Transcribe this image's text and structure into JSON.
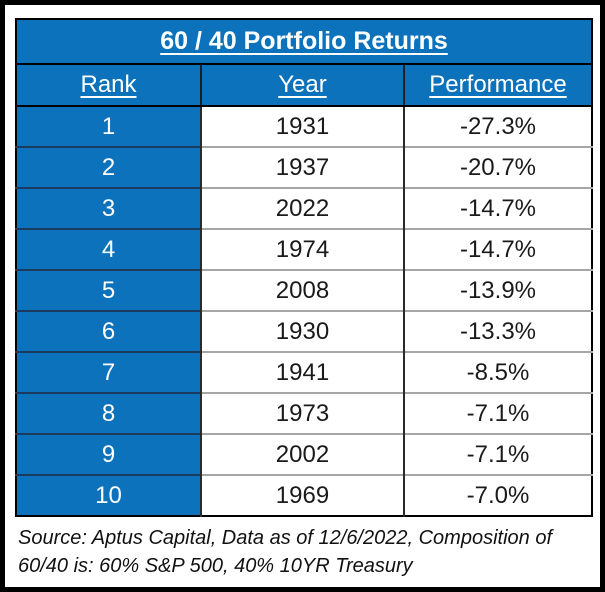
{
  "colors": {
    "header_blue": "#0c72bc",
    "frame_black": "#000000",
    "row_separator_light": "#a6a6a6",
    "row_separator_dark": "#1c3a5e",
    "text_white": "#ffffff",
    "text_dark": "#1a1a1a"
  },
  "table": {
    "title": "60 / 40 Portfolio Returns",
    "columns": [
      "Rank",
      "Year",
      "Performance"
    ],
    "rows": [
      {
        "rank": "1",
        "year": "1931",
        "performance": "-27.3%"
      },
      {
        "rank": "2",
        "year": "1937",
        "performance": "-20.7%"
      },
      {
        "rank": "3",
        "year": "2022",
        "performance": "-14.7%"
      },
      {
        "rank": "4",
        "year": "1974",
        "performance": "-14.7%"
      },
      {
        "rank": "5",
        "year": "2008",
        "performance": "-13.9%"
      },
      {
        "rank": "6",
        "year": "1930",
        "performance": "-13.3%"
      },
      {
        "rank": "7",
        "year": "1941",
        "performance": "-8.5%"
      },
      {
        "rank": "8",
        "year": "1973",
        "performance": "-7.1%"
      },
      {
        "rank": "9",
        "year": "2002",
        "performance": "-7.1%"
      },
      {
        "rank": "10",
        "year": "1969",
        "performance": "-7.0%"
      }
    ]
  },
  "footer": {
    "line1": "Source: Aptus Capital, Data as of 12/6/2022, Composition of",
    "line2": "60/40 is: 60% S&P 500, 40% 10YR Treasury"
  },
  "chart_data": {
    "type": "table",
    "title": "60 / 40 Portfolio Returns",
    "columns": [
      "Rank",
      "Year",
      "Performance"
    ],
    "rows": [
      [
        1,
        1931,
        -27.3
      ],
      [
        2,
        1937,
        -20.7
      ],
      [
        3,
        2022,
        -14.7
      ],
      [
        4,
        1974,
        -14.7
      ],
      [
        5,
        2008,
        -13.9
      ],
      [
        6,
        1930,
        -13.3
      ],
      [
        7,
        1941,
        -8.5
      ],
      [
        8,
        1973,
        -7.1
      ],
      [
        9,
        2002,
        -7.1
      ],
      [
        10,
        1969,
        -7.0
      ]
    ],
    "units": "percent",
    "notes": "Source: Aptus Capital, Data as of 12/6/2022, Composition of 60/40 is: 60% S&P 500, 40% 10YR Treasury"
  }
}
